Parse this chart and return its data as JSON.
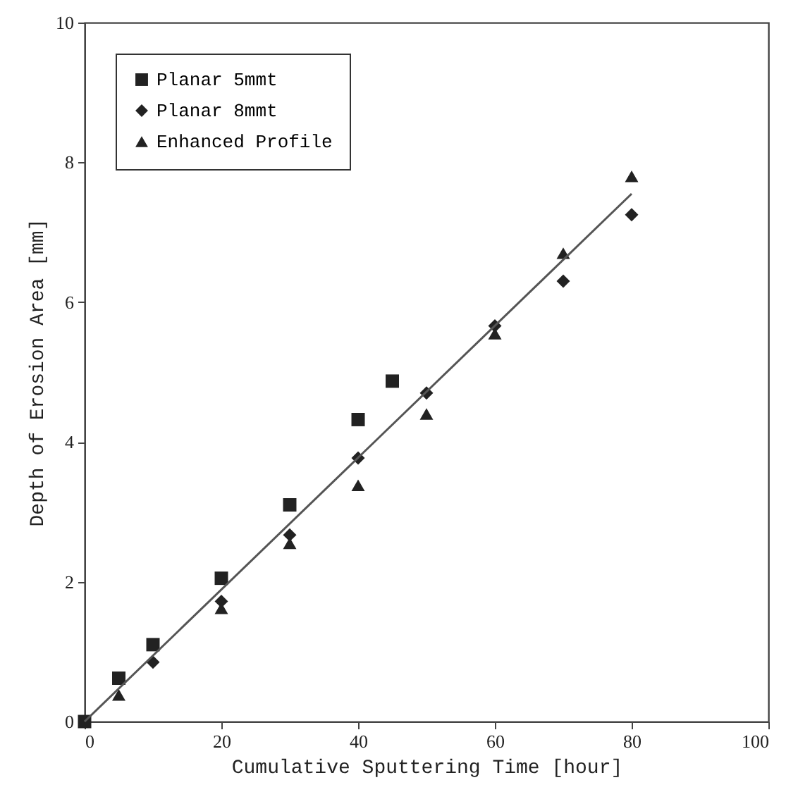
{
  "chart_data": {
    "type": "scatter",
    "xlabel": "Cumulative Sputtering Time [hour]",
    "ylabel": "Depth of Erosion Area [mm]",
    "xlim": [
      0,
      100
    ],
    "ylim": [
      0,
      10
    ],
    "xticks": [
      0,
      20,
      40,
      60,
      80,
      100
    ],
    "yticks": [
      0,
      2,
      4,
      6,
      8,
      10
    ],
    "grid": false,
    "legend": "top left",
    "series": [
      {
        "name": "Planar 5mmt",
        "color": "#222222",
        "marker": "square",
        "x": [
          0,
          5,
          10,
          20,
          30,
          40,
          45
        ],
        "values": [
          0,
          0.62,
          1.1,
          2.05,
          3.1,
          4.32,
          4.87
        ]
      },
      {
        "name": "Planar 8mmt",
        "color": "#222222",
        "marker": "diamond",
        "x": [
          10,
          20,
          30,
          40,
          50,
          60,
          70,
          80
        ],
        "values": [
          0.85,
          1.72,
          2.67,
          3.77,
          4.7,
          5.66,
          6.3,
          7.25
        ]
      },
      {
        "name": "Enhanced Profile",
        "color": "#222222",
        "marker": "triangle",
        "x": [
          5,
          20,
          30,
          40,
          50,
          60,
          70,
          80
        ],
        "values": [
          0.38,
          1.62,
          2.55,
          3.38,
          4.4,
          5.55,
          6.7,
          7.8
        ]
      },
      {
        "type": "line",
        "color": "#555555",
        "x": [
          0,
          80
        ],
        "values": [
          0,
          7.55
        ]
      }
    ]
  }
}
